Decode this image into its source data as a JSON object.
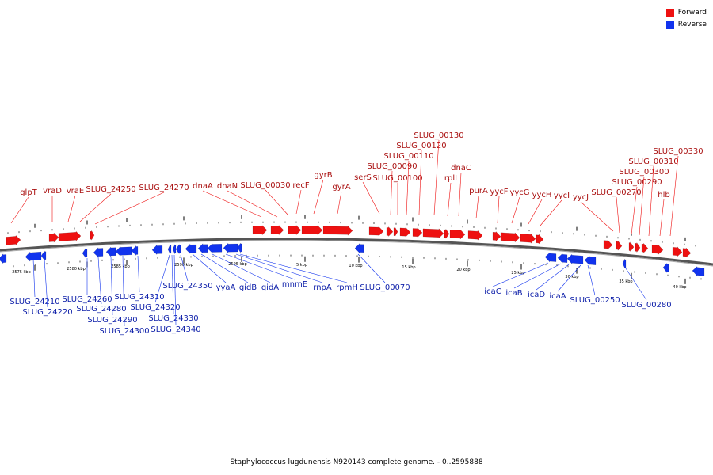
{
  "legend": {
    "forward": {
      "label": "Forward",
      "color": "#ee1111"
    },
    "reverse": {
      "label": "Reverse",
      "color": "#1133ee"
    }
  },
  "caption": "Staphylococcus lugdunensis N920143 complete genome. - 0..2595888",
  "ticks": [
    "2575 kbp",
    "2580 kbp",
    "2585 kbp",
    "2590 kbp",
    "2595 kbp",
    "5 kbp",
    "10 kbp",
    "15 kbp",
    "20 kbp",
    "25 kbp",
    "30 kbp",
    "35 kbp",
    "40 kbp"
  ],
  "forward_labels": [
    "glpT",
    "vraD",
    "vraE",
    "SLUG_24250",
    "SLUG_24270",
    "dnaA",
    "dnaN",
    "SLUG_00030",
    "recF",
    "gyrB",
    "gyrA",
    "serS",
    "SLUG_00090",
    "SLUG_00100",
    "SLUG_00110",
    "SLUG_00120",
    "SLUG_00130",
    "rplI",
    "dnaC",
    "purA",
    "yycF",
    "yycG",
    "yycH",
    "yycI",
    "yycJ",
    "SLUG_00270",
    "SLUG_00290",
    "SLUG_00300",
    "SLUG_00310",
    "SLUG_00330",
    "hlb"
  ],
  "reverse_labels": [
    "SLUG_24210",
    "SLUG_24220",
    "SLUG_24260",
    "SLUG_24280",
    "SLUG_24290",
    "SLUG_24300",
    "SLUG_24310",
    "SLUG_24320",
    "SLUG_24330",
    "SLUG_24340",
    "SLUG_24350",
    "yyaA",
    "gidB",
    "gidA",
    "mnmE",
    "rnpA",
    "rpmH",
    "SLUG_00070",
    "icaC",
    "icaB",
    "icaD",
    "icaA",
    "SLUG_00250",
    "SLUG_00280"
  ]
}
